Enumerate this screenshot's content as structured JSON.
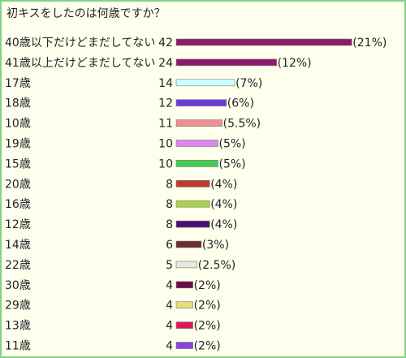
{
  "title": "初キスをしたのは何歳ですか？",
  "chart_data": {
    "type": "bar",
    "orientation": "horizontal",
    "categories": [
      "40歳以下だけどまだしてない",
      "41歳以上だけどまだしてない",
      "17歳",
      "18歳",
      "10歳",
      "19歳",
      "15歳",
      "20歳",
      "16歳",
      "12歳",
      "14歳",
      "22歳",
      "30歳",
      "29歳",
      "13歳",
      "11歳"
    ],
    "values": [
      42,
      24,
      14,
      12,
      11,
      10,
      10,
      8,
      8,
      8,
      6,
      5,
      4,
      4,
      4,
      4
    ],
    "percents": [
      "(21%)",
      "(12%)",
      "(7%)",
      "(6%)",
      "(5.5%)",
      "(5%)",
      "(5%)",
      "(4%)",
      "(4%)",
      "(4%)",
      "(3%)",
      "(2.5%)",
      "(2%)",
      "(2%)",
      "(2%)",
      "(2%)"
    ],
    "colors": [
      "#8b1a6b",
      "#8b1a6b",
      "#ccffff",
      "#6a3cd6",
      "#ee9090",
      "#dd88ee",
      "#44cc55",
      "#c0392b",
      "#a8d44a",
      "#4a1070",
      "#6b2d2d",
      "#e6e6dc",
      "#6a0f4a",
      "#e6dc78",
      "#dd1a55",
      "#8844dd"
    ],
    "title": "初キスをしたのは何歳ですか？"
  }
}
